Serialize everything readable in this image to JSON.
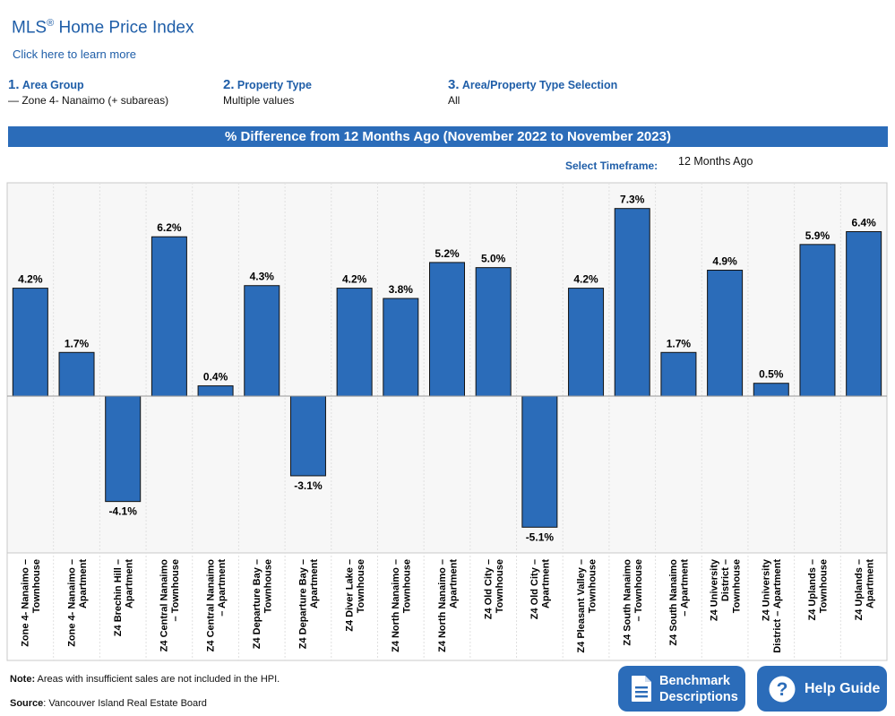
{
  "header": {
    "title": "MLS",
    "title_sup": "®",
    "title_rest": " Home Price Index",
    "learn_link": "Click here to learn more"
  },
  "filters": [
    {
      "num": "1.",
      "label": "Area Group",
      "value": "— Zone 4- Nanaimo (+ subareas)"
    },
    {
      "num": "2.",
      "label": "Property Type",
      "value": "Multiple values"
    },
    {
      "num": "3.",
      "label": "Area/Property Type Selection",
      "value": "All"
    }
  ],
  "banner": "% Difference from 12 Months Ago (November 2022 to November 2023)",
  "timeframe": {
    "label": "Select Timeframe:",
    "value": "12 Months Ago"
  },
  "chart_data": {
    "type": "bar",
    "title": "% Difference from 12 Months Ago (November 2022 to November 2023)",
    "categories": [
      [
        "Zone 4- Nanaimo –",
        "Townhouse"
      ],
      [
        "Zone 4- Nanaimo –",
        "Apartment"
      ],
      [
        "Z4 Brechin Hill –",
        "Apartment"
      ],
      [
        "Z4 Central Nanaimo",
        "– Townhouse"
      ],
      [
        "Z4 Central Nanaimo",
        "– Apartment"
      ],
      [
        "Z4 Departure Bay –",
        "Townhouse"
      ],
      [
        "Z4 Departure Bay –",
        "Apartment"
      ],
      [
        "Z4 Diver Lake –",
        "Townhouse"
      ],
      [
        "Z4 North Nanaimo –",
        "Townhouse"
      ],
      [
        "Z4 North Nanaimo –",
        "Apartment"
      ],
      [
        "Z4 Old City –",
        "Townhouse"
      ],
      [
        "Z4 Old City –",
        "Apartment"
      ],
      [
        "Z4 Pleasant Valley –",
        "Townhouse"
      ],
      [
        "Z4 South Nanaimo",
        "– Townhouse"
      ],
      [
        "Z4 South Nanaimo",
        "– Apartment"
      ],
      [
        "Z4 University",
        "District –",
        "Townhouse"
      ],
      [
        "Z4 University",
        "District – Apartment"
      ],
      [
        "Z4 Uplands –",
        "Townhouse"
      ],
      [
        "Z4 Uplands –",
        "Apartment"
      ]
    ],
    "values": [
      4.2,
      1.7,
      -4.1,
      6.2,
      0.4,
      4.3,
      -3.1,
      4.2,
      3.8,
      5.2,
      5.0,
      -5.1,
      4.2,
      7.3,
      1.7,
      4.9,
      0.5,
      5.9,
      6.4
    ],
    "labels": [
      "4.2%",
      "1.7%",
      "-4.1%",
      "6.2%",
      "0.4%",
      "4.3%",
      "-3.1%",
      "4.2%",
      "3.8%",
      "5.2%",
      "5.0%",
      "-5.1%",
      "4.2%",
      "7.3%",
      "1.7%",
      "4.9%",
      "0.5%",
      "5.9%",
      "6.4%"
    ],
    "ylim": [
      -6.1,
      8.3
    ],
    "bar_color": "#2b6cb9",
    "grid": false
  },
  "footer": {
    "note_label": "Note:",
    "note_text": " Areas with insufficient sales are not included in the HPI.",
    "source_label": "Source",
    "source_text": ": Vancouver Island Real Estate Board"
  },
  "buttons": {
    "benchmark_line1": "Benchmark",
    "benchmark_line2": "Descriptions",
    "help": "Help Guide"
  },
  "icons": [
    "document-icon",
    "question-circle-icon"
  ]
}
